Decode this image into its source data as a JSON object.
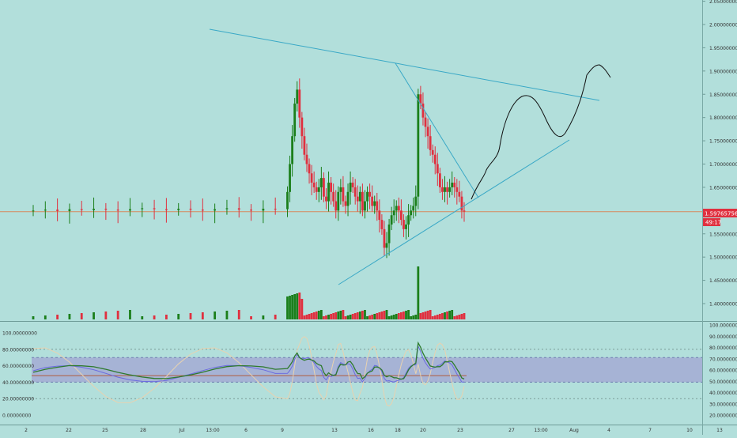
{
  "colors": {
    "background": "#b2dfdb",
    "bull": "#1b7f1b",
    "bear": "#e0303f",
    "trendline": "#39a8c6",
    "price_line": "#d8895c",
    "price_tag": "#e0303f",
    "band_fill": "#9c8ed0",
    "stoch_k": "#2e7a2e",
    "stoch_d": "#6a6ae0",
    "rsi": "#e8d2b0",
    "axis_text": "#333333"
  },
  "price_tag": {
    "value": "1.59765756",
    "timer": "49:17"
  },
  "chart_data": [
    {
      "type": "line",
      "title": "",
      "subtitle": "",
      "xlabel": "",
      "ylabel": "",
      "chart_kind": "candlestick with volume",
      "x_ticks": [
        "2",
        "22",
        "25",
        "28",
        "Jul",
        "13:00",
        "6",
        "9",
        "13",
        "16",
        "18",
        "20",
        "23",
        "27",
        "13:00",
        "Aug",
        "4",
        "7",
        "10",
        "13"
      ],
      "y_ticks": [
        "1.40000000",
        "1.45000000",
        "1.50000000",
        "1.55000000",
        "1.60000000",
        "1.65000000",
        "1.70000000",
        "1.75000000",
        "1.80000000",
        "1.85000000",
        "1.90000000",
        "1.95000000",
        "2.00000000",
        "2.05000000"
      ],
      "ylim": [
        1.38,
        2.05
      ],
      "current_price": 1.59765756,
      "series": [
        {
          "kind": "candles_close",
          "points": [
            [
              0,
              1.6
            ],
            [
              10,
              1.602
            ],
            [
              20,
              1.599
            ],
            [
              30,
              1.603
            ],
            [
              40,
              1.601
            ],
            [
              50,
              1.604
            ],
            [
              60,
              1.602
            ],
            [
              70,
              1.6
            ],
            [
              80,
              1.603
            ],
            [
              90,
              1.605
            ],
            [
              100,
              1.603
            ],
            [
              110,
              1.601
            ],
            [
              120,
              1.604
            ],
            [
              130,
              1.602
            ],
            [
              140,
              1.6
            ],
            [
              150,
              1.603
            ],
            [
              160,
              1.605
            ],
            [
              170,
              1.602
            ],
            [
              180,
              1.6
            ],
            [
              190,
              1.604
            ],
            [
              200,
              1.603
            ],
            [
              210,
              1.64
            ],
            [
              212,
              1.7
            ],
            [
              214,
              1.76
            ],
            [
              216,
              1.83
            ],
            [
              218,
              1.86
            ],
            [
              220,
              1.8
            ],
            [
              222,
              1.76
            ],
            [
              224,
              1.72
            ],
            [
              226,
              1.7
            ],
            [
              228,
              1.68
            ],
            [
              230,
              1.66
            ],
            [
              232,
              1.65
            ],
            [
              234,
              1.64
            ],
            [
              236,
              1.65
            ],
            [
              238,
              1.67
            ],
            [
              240,
              1.63
            ],
            [
              242,
              1.62
            ],
            [
              244,
              1.66
            ],
            [
              246,
              1.64
            ],
            [
              248,
              1.62
            ],
            [
              250,
              1.6
            ],
            [
              252,
              1.64
            ],
            [
              254,
              1.65
            ],
            [
              256,
              1.62
            ],
            [
              258,
              1.61
            ],
            [
              260,
              1.64
            ],
            [
              262,
              1.66
            ],
            [
              264,
              1.65
            ],
            [
              266,
              1.63
            ],
            [
              268,
              1.62
            ],
            [
              270,
              1.64
            ],
            [
              272,
              1.6
            ],
            [
              274,
              1.62
            ],
            [
              276,
              1.64
            ],
            [
              278,
              1.63
            ],
            [
              280,
              1.61
            ],
            [
              282,
              1.62
            ],
            [
              284,
              1.6
            ],
            [
              286,
              1.58
            ],
            [
              288,
              1.56
            ],
            [
              290,
              1.52
            ],
            [
              292,
              1.53
            ],
            [
              294,
              1.57
            ],
            [
              296,
              1.59
            ],
            [
              298,
              1.6
            ],
            [
              300,
              1.61
            ],
            [
              302,
              1.6
            ],
            [
              304,
              1.58
            ],
            [
              306,
              1.56
            ],
            [
              308,
              1.57
            ],
            [
              310,
              1.59
            ],
            [
              312,
              1.6
            ],
            [
              314,
              1.61
            ],
            [
              316,
              1.63
            ],
            [
              318,
              1.85
            ],
            [
              320,
              1.83
            ],
            [
              322,
              1.8
            ],
            [
              324,
              1.78
            ],
            [
              326,
              1.76
            ],
            [
              328,
              1.73
            ],
            [
              330,
              1.72
            ],
            [
              332,
              1.7
            ],
            [
              334,
              1.68
            ],
            [
              336,
              1.65
            ],
            [
              338,
              1.64
            ],
            [
              340,
              1.65
            ],
            [
              342,
              1.64
            ],
            [
              344,
              1.65
            ],
            [
              346,
              1.66
            ],
            [
              348,
              1.65
            ],
            [
              350,
              1.64
            ],
            [
              352,
              1.63
            ],
            [
              354,
              1.6
            ],
            [
              356,
              1.598
            ]
          ]
        }
      ],
      "annotations": [
        "descending upper trendline",
        "ascending lower trendline",
        "descending line from second peak",
        "hand-drawn projected price path"
      ]
    },
    {
      "type": "line",
      "title": "",
      "xlabel": "",
      "ylabel": "",
      "chart_kind": "oscillator (stochastic RSI style)",
      "left_y_ticks": [
        "0.00000000",
        "20.00000000",
        "40.00000000",
        "60.00000000",
        "80.00000000",
        "100.00000000"
      ],
      "right_y_ticks": [
        "20.00000000",
        "30.00000000",
        "40.00000000",
        "50.00000000",
        "60.00000000",
        "70.00000000",
        "80.00000000",
        "90.00000000",
        "100.00000000"
      ],
      "band": [
        40,
        70
      ],
      "middle_line": 48,
      "ylim": [
        0,
        100
      ]
    }
  ]
}
